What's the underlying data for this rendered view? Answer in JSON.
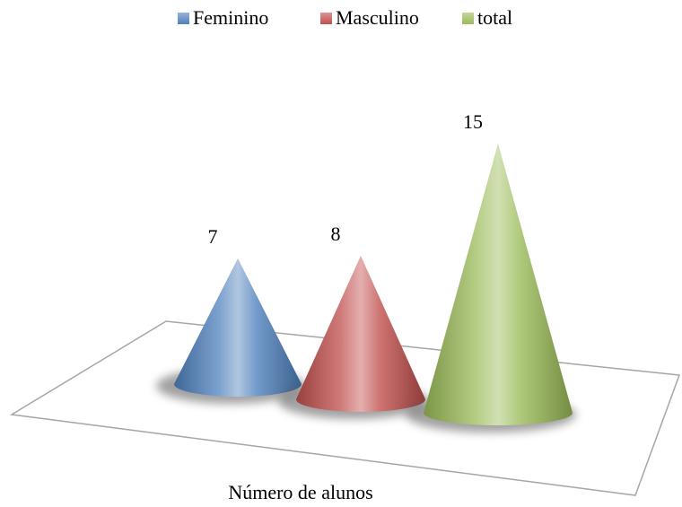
{
  "chart_data": {
    "type": "cone",
    "categories": [
      "Número de alunos"
    ],
    "series": [
      {
        "name": "Feminino",
        "color": "#4f81bd",
        "values": [
          7
        ]
      },
      {
        "name": "Masculino",
        "color": "#c0504d",
        "values": [
          8
        ]
      },
      {
        "name": "total",
        "color": "#9bbb59",
        "values": [
          15
        ]
      }
    ],
    "legend": "top"
  }
}
